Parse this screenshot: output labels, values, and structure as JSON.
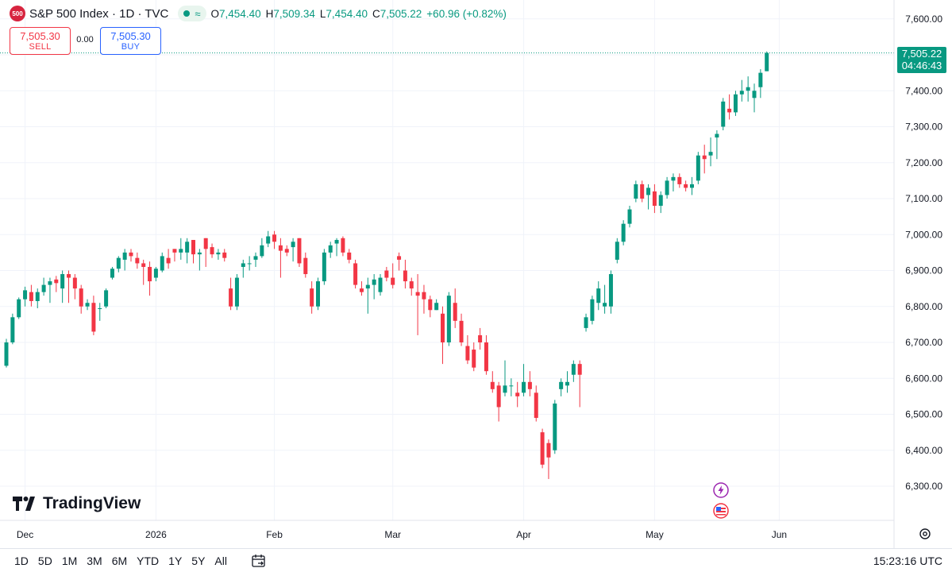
{
  "header": {
    "logo_text": "500",
    "title": "S&P 500 Index · 1D · TVC",
    "ohlc": {
      "o_label": "O",
      "o": "7,454.40",
      "h_label": "H",
      "h": "7,509.34",
      "l_label": "L",
      "l": "7,454.40",
      "c_label": "C",
      "c": "7,505.22",
      "change": "+60.96 (+0.82%)"
    }
  },
  "trade": {
    "sell_price": "7,505.30",
    "sell_label": "SELL",
    "spread": "0.00",
    "buy_price": "7,505.30",
    "buy_label": "BUY"
  },
  "price_tag": {
    "price": "7,505.22",
    "countdown": "04:46:43"
  },
  "brand": "TradingView",
  "bottom_bar": {
    "ranges": [
      "1D",
      "5D",
      "1M",
      "3M",
      "6M",
      "YTD",
      "1Y",
      "5Y",
      "All"
    ],
    "clock": "15:23:16 UTC"
  },
  "colors": {
    "up": "#089981",
    "down": "#f23645",
    "grid": "#f0f3fa",
    "text": "#131722"
  },
  "chart_data": {
    "type": "candlestick",
    "title": "S&P 500 Index · 1D · TVC",
    "ylim": [
      6250,
      7650
    ],
    "y_ticks": [
      6300,
      6400,
      6500,
      6600,
      6700,
      6800,
      6900,
      7000,
      7100,
      7200,
      7300,
      7400,
      7500,
      7600
    ],
    "y_tick_labels": [
      "6,300.00",
      "6,400.00",
      "6,500.00",
      "6,600.00",
      "6,700.00",
      "6,800.00",
      "6,900.00",
      "7,000.00",
      "7,100.00",
      "7,200.00",
      "7,300.00",
      "7,400.00",
      "7,500.00",
      "7,600.00"
    ],
    "x_labels": [
      "Dec",
      "2026",
      "Feb",
      "Mar",
      "Apr",
      "May",
      "Jun"
    ],
    "x_label_index": [
      3,
      24,
      43,
      62,
      83,
      104,
      124
    ],
    "last_price": 7505.22,
    "grid": true,
    "candles": [
      [
        6635,
        6710,
        6630,
        6700
      ],
      [
        6700,
        6780,
        6695,
        6770
      ],
      [
        6770,
        6825,
        6765,
        6820
      ],
      [
        6820,
        6855,
        6800,
        6845
      ],
      [
        6840,
        6860,
        6800,
        6815
      ],
      [
        6815,
        6850,
        6795,
        6840
      ],
      [
        6840,
        6880,
        6830,
        6860
      ],
      [
        6860,
        6880,
        6810,
        6870
      ],
      [
        6875,
        6885,
        6840,
        6865
      ],
      [
        6850,
        6900,
        6810,
        6890
      ],
      [
        6890,
        6900,
        6810,
        6880
      ],
      [
        6880,
        6890,
        6820,
        6850
      ],
      [
        6850,
        6860,
        6780,
        6800
      ],
      [
        6800,
        6820,
        6790,
        6810
      ],
      [
        6810,
        6830,
        6720,
        6730
      ],
      [
        6795,
        6810,
        6760,
        6795
      ],
      [
        6800,
        6850,
        6795,
        6845
      ],
      [
        6880,
        6910,
        6875,
        6905
      ],
      [
        6905,
        6940,
        6895,
        6935
      ],
      [
        6930,
        6960,
        6900,
        6950
      ],
      [
        6950,
        6960,
        6925,
        6940
      ],
      [
        6935,
        6950,
        6905,
        6920
      ],
      [
        6920,
        6930,
        6860,
        6910
      ],
      [
        6910,
        6925,
        6830,
        6870
      ],
      [
        6880,
        6910,
        6870,
        6905
      ],
      [
        6900,
        6950,
        6895,
        6940
      ],
      [
        6935,
        6960,
        6905,
        6920
      ],
      [
        6960,
        6960,
        6925,
        6950
      ],
      [
        6950,
        6990,
        6930,
        6960
      ],
      [
        6950,
        6990,
        6920,
        6980
      ],
      [
        6985,
        6985,
        6920,
        6945
      ],
      [
        6945,
        6960,
        6900,
        6950
      ],
      [
        6990,
        6990,
        6910,
        6960
      ],
      [
        6965,
        6975,
        6935,
        6945
      ],
      [
        6945,
        6960,
        6930,
        6950
      ],
      [
        6950,
        6960,
        6925,
        6935
      ],
      [
        6850,
        6880,
        6790,
        6800
      ],
      [
        6800,
        6890,
        6790,
        6880
      ],
      [
        6910,
        6930,
        6880,
        6920
      ],
      [
        6920,
        6940,
        6900,
        6920
      ],
      [
        6930,
        6950,
        6910,
        6940
      ],
      [
        6940,
        6990,
        6935,
        6970
      ],
      [
        6975,
        7010,
        6965,
        6995
      ],
      [
        7000,
        7010,
        6960,
        6980
      ],
      [
        6970,
        6990,
        6880,
        6955
      ],
      [
        6960,
        6970,
        6940,
        6950
      ],
      [
        6965,
        6990,
        6925,
        6980
      ],
      [
        6990,
        6990,
        6910,
        6920
      ],
      [
        6935,
        6950,
        6880,
        6890
      ],
      [
        6850,
        6870,
        6780,
        6800
      ],
      [
        6800,
        6880,
        6790,
        6870
      ],
      [
        6870,
        6960,
        6860,
        6950
      ],
      [
        6950,
        6980,
        6935,
        6970
      ],
      [
        6975,
        6990,
        6940,
        6985
      ],
      [
        6990,
        6995,
        6940,
        6950
      ],
      [
        6950,
        6960,
        6920,
        6930
      ],
      [
        6920,
        6930,
        6850,
        6860
      ],
      [
        6850,
        6870,
        6830,
        6840
      ],
      [
        6850,
        6880,
        6780,
        6860
      ],
      [
        6860,
        6890,
        6820,
        6875
      ],
      [
        6840,
        6890,
        6830,
        6880
      ],
      [
        6900,
        6910,
        6870,
        6880
      ],
      [
        6880,
        6920,
        6850,
        6860
      ],
      [
        6940,
        6950,
        6900,
        6930
      ],
      [
        6900,
        6930,
        6850,
        6870
      ],
      [
        6870,
        6880,
        6830,
        6850
      ],
      [
        6840,
        6890,
        6720,
        6830
      ],
      [
        6840,
        6860,
        6780,
        6820
      ],
      [
        6820,
        6830,
        6770,
        6790
      ],
      [
        6790,
        6820,
        6790,
        6810
      ],
      [
        6780,
        6800,
        6640,
        6700
      ],
      [
        6700,
        6840,
        6690,
        6830
      ],
      [
        6810,
        6850,
        6740,
        6760
      ],
      [
        6760,
        6780,
        6690,
        6700
      ],
      [
        6690,
        6720,
        6640,
        6650
      ],
      [
        6680,
        6700,
        6620,
        6630
      ],
      [
        6720,
        6740,
        6680,
        6700
      ],
      [
        6700,
        6720,
        6610,
        6620
      ],
      [
        6590,
        6620,
        6560,
        6570
      ],
      [
        6580,
        6590,
        6480,
        6520
      ],
      [
        6560,
        6650,
        6550,
        6580
      ],
      [
        6580,
        6600,
        6550,
        6580
      ],
      [
        6560,
        6590,
        6520,
        6550
      ],
      [
        6560,
        6640,
        6550,
        6590
      ],
      [
        6590,
        6620,
        6550,
        6570
      ],
      [
        6560,
        6580,
        6480,
        6490
      ],
      [
        6450,
        6460,
        6350,
        6360
      ],
      [
        6420,
        6430,
        6320,
        6380
      ],
      [
        6400,
        6540,
        6390,
        6530
      ],
      [
        6570,
        6600,
        6550,
        6590
      ],
      [
        6580,
        6620,
        6560,
        6590
      ],
      [
        6610,
        6650,
        6590,
        6640
      ],
      [
        6640,
        6650,
        6520,
        6610
      ],
      [
        6740,
        6780,
        6730,
        6770
      ],
      [
        6760,
        6830,
        6750,
        6820
      ],
      [
        6810,
        6870,
        6790,
        6850
      ],
      [
        6800,
        6860,
        6780,
        6810
      ],
      [
        6800,
        6900,
        6780,
        6890
      ],
      [
        6930,
        6990,
        6920,
        6980
      ],
      [
        6980,
        7040,
        6970,
        7030
      ],
      [
        7030,
        7080,
        7020,
        7070
      ],
      [
        7100,
        7150,
        7090,
        7140
      ],
      [
        7140,
        7150,
        7090,
        7100
      ],
      [
        7110,
        7140,
        7070,
        7130
      ],
      [
        7120,
        7140,
        7060,
        7080
      ],
      [
        7080,
        7120,
        7060,
        7110
      ],
      [
        7110,
        7160,
        7100,
        7150
      ],
      [
        7150,
        7170,
        7120,
        7160
      ],
      [
        7160,
        7170,
        7130,
        7140
      ],
      [
        7140,
        7150,
        7120,
        7130
      ],
      [
        7130,
        7160,
        7110,
        7140
      ],
      [
        7150,
        7230,
        7140,
        7220
      ],
      [
        7220,
        7250,
        7170,
        7210
      ],
      [
        7220,
        7270,
        7190,
        7230
      ],
      [
        7270,
        7290,
        7210,
        7280
      ],
      [
        7300,
        7380,
        7290,
        7370
      ],
      [
        7350,
        7390,
        7320,
        7340
      ],
      [
        7340,
        7400,
        7330,
        7390
      ],
      [
        7390,
        7430,
        7370,
        7400
      ],
      [
        7400,
        7440,
        7370,
        7410
      ],
      [
        7380,
        7420,
        7340,
        7400
      ],
      [
        7410,
        7460,
        7380,
        7450
      ],
      [
        7454.4,
        7509.34,
        7454.4,
        7505.22
      ]
    ]
  }
}
